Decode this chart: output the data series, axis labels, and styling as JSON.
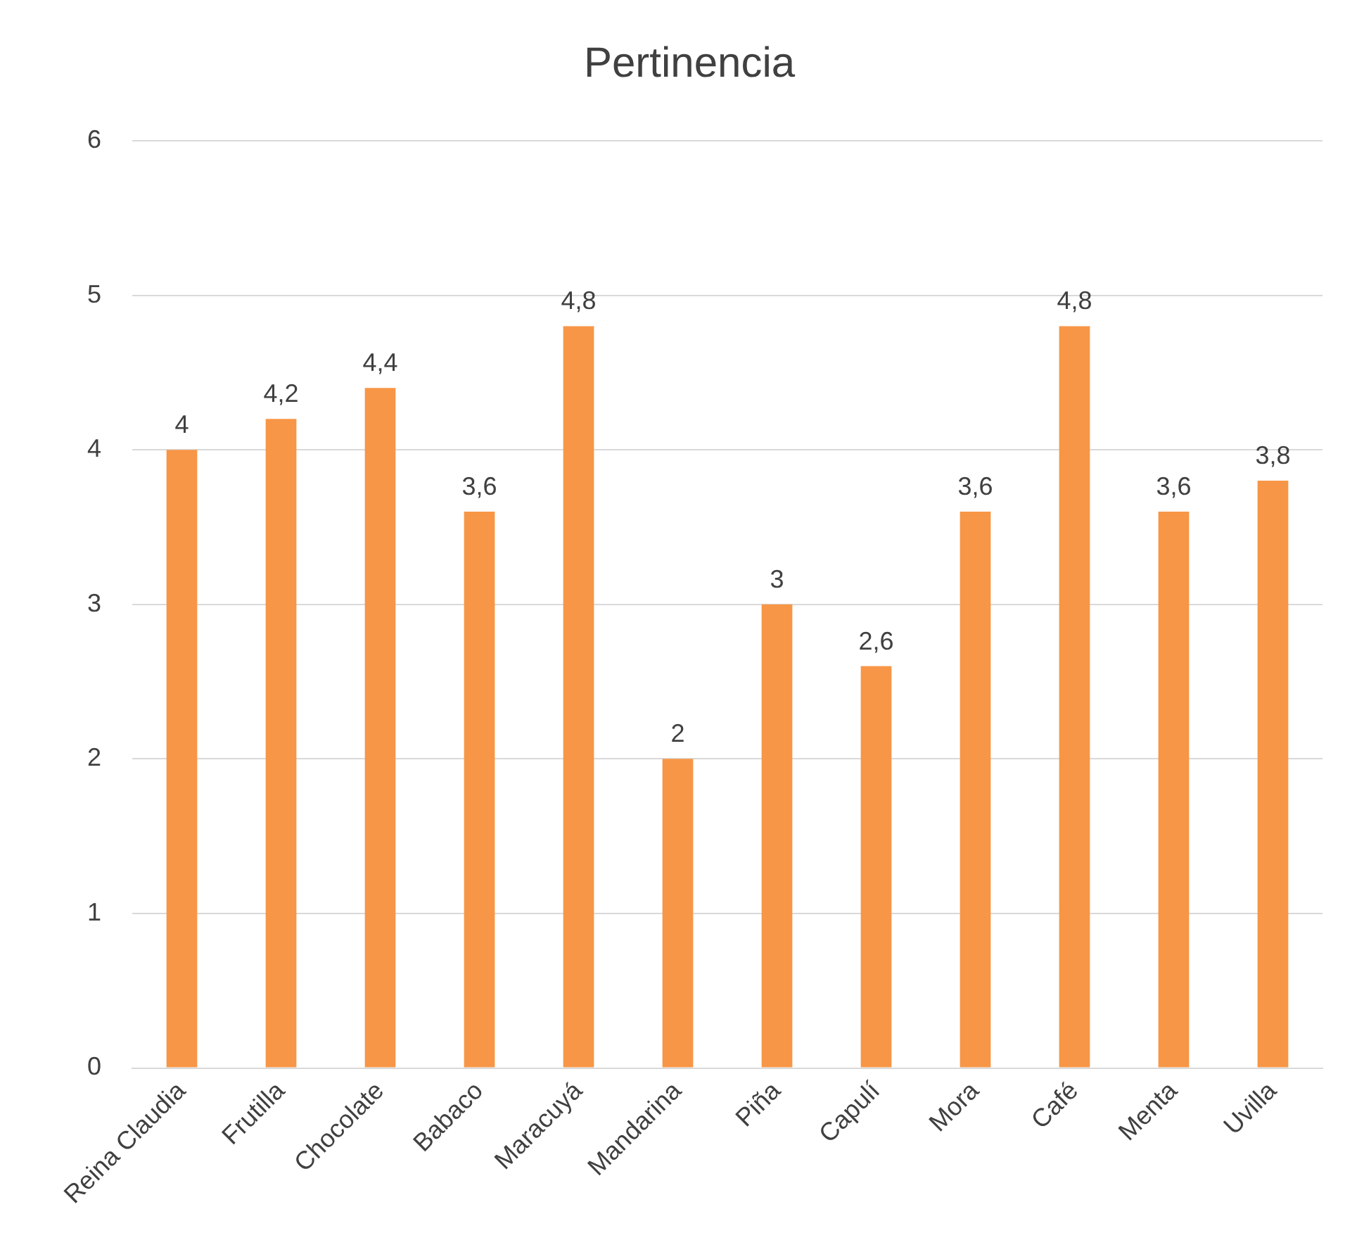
{
  "chart_data": {
    "type": "bar",
    "title": "Pertinencia",
    "categories": [
      "Reina Claudia",
      "Frutilla",
      "Chocolate",
      "Babaco",
      "Maracuyá",
      "Mandarina",
      "Piña",
      "Capulí",
      "Mora",
      "Café",
      "Menta",
      "Uvilla"
    ],
    "values": [
      4,
      4.2,
      4.4,
      3.6,
      4.8,
      2,
      3,
      2.6,
      3.6,
      4.8,
      3.6,
      3.8
    ],
    "value_labels": [
      "4",
      "4,2",
      "4,4",
      "3,6",
      "4,8",
      "2",
      "3",
      "2,6",
      "3,6",
      "4,8",
      "3,6",
      "3,8"
    ],
    "color": "#f79646",
    "ylim": [
      0,
      6
    ],
    "yticks": [
      0,
      1,
      2,
      3,
      4,
      5,
      6
    ],
    "grid": "y",
    "legend": false
  }
}
